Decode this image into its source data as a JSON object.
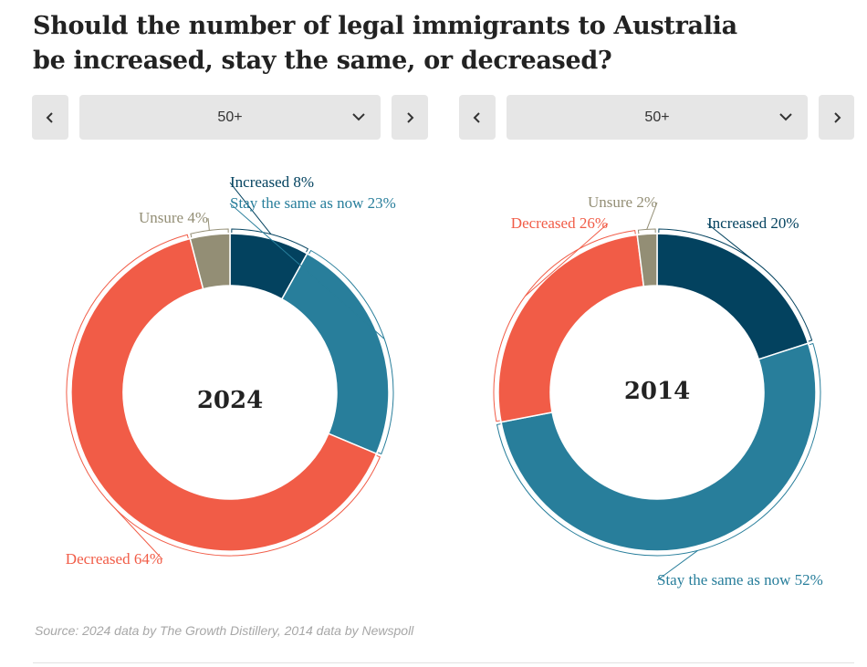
{
  "title": {
    "line1": "Should the number of legal immigrants to Australia",
    "line2": "be increased, stay the same, or decreased?"
  },
  "controls": [
    {
      "prev_icon": "chevron-left-icon",
      "selected": "50+",
      "dropdown_icon": "chevron-down-icon",
      "next_icon": "chevron-right-icon"
    },
    {
      "prev_icon": "chevron-left-icon",
      "selected": "50+",
      "dropdown_icon": "chevron-down-icon",
      "next_icon": "chevron-right-icon"
    }
  ],
  "colors": {
    "increased": "#03425f",
    "same": "#287e9b",
    "decreased": "#f15c47",
    "unsure": "#938e75"
  },
  "chart_data": [
    {
      "type": "pie",
      "center_label": "2024",
      "categories": [
        "Increased",
        "Stay the same as now",
        "Decreased",
        "Unsure"
      ],
      "values": [
        8,
        23,
        64,
        4
      ],
      "labels": [
        "Increased 8%",
        "Stay the same as now 23%",
        "Decreased 64%",
        "Unsure 4%"
      ]
    },
    {
      "type": "pie",
      "center_label": "2014",
      "categories": [
        "Increased",
        "Stay the same as now",
        "Decreased",
        "Unsure"
      ],
      "values": [
        20,
        52,
        26,
        2
      ],
      "labels": [
        "Increased 20%",
        "Stay the same as now 52%",
        "Decreased 26%",
        "Unsure 2%"
      ]
    }
  ],
  "source": "Source: 2024 data by The Growth Distillery, 2014 data by Newspoll"
}
